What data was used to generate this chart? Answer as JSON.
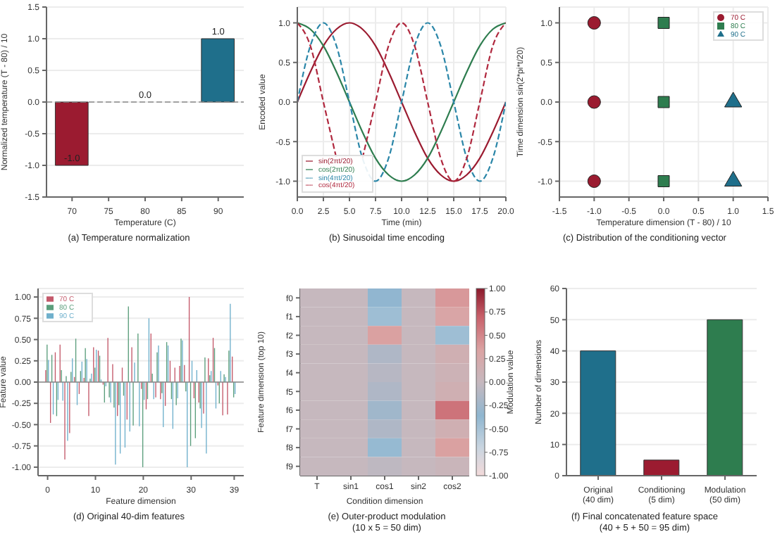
{
  "chart_data": [
    {
      "type": "bar",
      "title": "(a) Temperature normalization",
      "xlabel": "Temperature (C)",
      "ylabel": "Normalized temperature (T - 80) / 10",
      "x": [
        70,
        80,
        90
      ],
      "values": [
        -1,
        0,
        1
      ],
      "colors": [
        "#9b1b30",
        "#888888",
        "#1f6f8b"
      ],
      "value_labels": [
        "-1.0",
        "0.0",
        "1.0"
      ],
      "xlim": [
        66.5,
        93.5
      ],
      "xticks": [
        70,
        75,
        80,
        85,
        90
      ],
      "ylim": [
        -1.5,
        1.5
      ],
      "yticks": [
        -1.5,
        {
          "value": -1,
          "label": "-1.0"
        },
        -0.5,
        {
          "value": 0,
          "label": "0.0"
        },
        0.5,
        {
          "value": 1,
          "label": "1.0"
        },
        1.5
      ],
      "ref_lines": [
        {
          "axis": "y",
          "value": 0,
          "color": "#888888",
          "line_style": "dashed"
        }
      ],
      "grid": "y"
    },
    {
      "type": "line",
      "title": "(b) Sinusoidal time encoding",
      "xlabel": "Time (min)",
      "ylabel": "Encoded value",
      "x": [
        0,
        1.25,
        2.5,
        3.75,
        5,
        6.25,
        7.5,
        8.75,
        10,
        11.25,
        12.5,
        13.75,
        15,
        16.25,
        17.5,
        18.75,
        20
      ],
      "series": [
        {
          "name": "sin(2πt/20)",
          "color": "#9b1b30",
          "line_style": "solid",
          "values": [
            0,
            0.38,
            0.71,
            0.92,
            1,
            0.92,
            0.71,
            0.38,
            0,
            -0.38,
            -0.71,
            -0.92,
            -1,
            -0.92,
            -0.71,
            -0.38,
            0
          ]
        },
        {
          "name": "cos(2πt/20)",
          "color": "#2e7d4f",
          "line_style": "solid",
          "values": [
            1,
            0.92,
            0.71,
            0.38,
            0,
            -0.38,
            -0.71,
            -0.92,
            -1,
            -0.92,
            -0.71,
            -0.38,
            0,
            0.38,
            0.71,
            0.92,
            1
          ]
        },
        {
          "name": "sin(4πt/20)",
          "color": "#2a86a8",
          "line_style": "dashed",
          "values": [
            0,
            0.71,
            1,
            0.71,
            0,
            -0.71,
            -1,
            -0.71,
            0,
            0.71,
            1,
            0.71,
            0,
            -0.71,
            -1,
            -0.71,
            0
          ]
        },
        {
          "name": "cos(4πt/20)",
          "color": "#b0283e",
          "line_style": "dashed",
          "values": [
            1,
            0.71,
            0,
            -0.71,
            null,
            -0.71,
            0,
            0.71,
            1,
            0.71,
            0,
            -0.71,
            -1,
            -0.71,
            0,
            0.71,
            1
          ]
        }
      ],
      "xlim": [
        0,
        20
      ],
      "xticks": [
        {
          "value": 0,
          "label": "0.0"
        },
        2.5,
        {
          "value": 5,
          "label": "5.0"
        },
        7.5,
        {
          "value": 10,
          "label": "10.0"
        },
        12.5,
        {
          "value": 15,
          "label": "15.0"
        },
        17.5,
        {
          "value": 20,
          "label": "20.0"
        }
      ],
      "ylim": [
        -1.2,
        1.2
      ],
      "yticks": [
        {
          "value": -1,
          "label": "-1.0"
        },
        -0.5,
        {
          "value": 0,
          "label": "0.0"
        },
        0.5,
        {
          "value": 1,
          "label": "1.0"
        }
      ],
      "grid": true,
      "legend": "bottom left"
    },
    {
      "type": "scatter",
      "title": "(c) Distribution of the conditioning vector",
      "xlabel": "Temperature dimension (T - 80) / 10",
      "ylabel": "Time dimension sin(2*pi*t/20)",
      "series": [
        {
          "name": "70 C",
          "color": "#9b1b30",
          "marker": "circle",
          "x": [
            -1,
            -1,
            -1
          ],
          "values": [
            1,
            0,
            -1
          ]
        },
        {
          "name": "80 C",
          "color": "#2e7d4f",
          "marker": "square",
          "x": [
            0,
            0,
            0
          ],
          "values": [
            1,
            0,
            -1
          ]
        },
        {
          "name": "90 C",
          "color": "#1f6f8b",
          "marker": "triangle",
          "x": [
            1,
            1
          ],
          "values": [
            0,
            -1
          ]
        }
      ],
      "xlim": [
        -1.5,
        1.5
      ],
      "xticks": [
        -1.5,
        {
          "value": -1,
          "label": "-1.0"
        },
        -0.5,
        {
          "value": 0,
          "label": "0.0"
        },
        0.5,
        {
          "value": 1,
          "label": "1.0"
        },
        1.5
      ],
      "ylim": [
        -1.2,
        1.2
      ],
      "yticks": [
        {
          "value": -1,
          "label": "-1.0"
        },
        -0.5,
        {
          "value": 0,
          "label": "0.0"
        },
        0.5,
        {
          "value": 1,
          "label": "1.0"
        }
      ],
      "grid": true,
      "legend": "top right"
    },
    {
      "type": "bar",
      "title": "(d) Original 40-dim features",
      "xlabel": "Feature dimension",
      "ylabel": "Feature value",
      "x": [
        0,
        1,
        2,
        3,
        4,
        5,
        6,
        7,
        8,
        9,
        10,
        11,
        12,
        13,
        14,
        15,
        16,
        17,
        18,
        19,
        20,
        21,
        22,
        23,
        24,
        25,
        26,
        27,
        28,
        29,
        30,
        31,
        32,
        33,
        34,
        35,
        36,
        37,
        38,
        39
      ],
      "series": [
        {
          "name": "70 C",
          "color": "#c45a6b",
          "values": [
            0.14,
            -0.48,
            0.35,
            0.44,
            -0.91,
            -0.6,
            0.06,
            -0.14,
            0.05,
            -0.4,
            0.41,
            0.37,
            -0.03,
            0.52,
            0.21,
            -0.4,
            0.17,
            -0.44,
            0.41,
            null,
            -0.08,
            -0.32,
            0.57,
            -0.18,
            -0.2,
            -0.28,
            0.25,
            0.17,
            0.19,
            0.2,
            1.0,
            -0.19,
            -0.24,
            -0.37,
            0.28,
            0.52,
            -0.04,
            -0.39,
            -0.38,
            0.3
          ]
        },
        {
          "name": "80 C",
          "color": "#5b9e7c",
          "values": [
            0.44,
            0.32,
            -0.4,
            0.14,
            0.07,
            0.12,
            0.51,
            0.13,
            0.4,
            0.04,
            0.17,
            0.31,
            -0.24,
            -0.18,
            -0.3,
            -0.27,
            -0.16,
            0.89,
            -0.51,
            0.57,
            -1.0,
            -0.2,
            0.1,
            0.35,
            -0.13,
            0.47,
            -0.2,
            -0.27,
            0.51,
            -0.11,
            -0.75,
            -0.66,
            -0.31,
            0.29,
            0.08,
            0.4,
            -0.25,
            0.09,
            0.37,
            -0.18
          ]
        },
        {
          "name": "90 C",
          "color": "#6fb0cc",
          "values": [
            0.26,
            -0.38,
            -0.21,
            -0.22,
            -0.69,
            0.28,
            -0.27,
            0.24,
            0.27,
            0.1,
            0.38,
            0.03,
            -0.05,
            -0.24,
            -0.97,
            -0.84,
            -0.77,
            -0.58,
            0.23,
            -0.52,
            -0.21,
            0.75,
            -0.2,
            0.43,
            -0.53,
            0.43,
            -0.55,
            -0.19,
            0.49,
            -1.0,
            0.25,
            0.14,
            -0.54,
            -0.84,
            0.13,
            -0.31,
            0.13,
            0.06,
            0.92,
            -0.14
          ]
        }
      ],
      "xlim": [
        -2,
        41
      ],
      "xticks": [
        0,
        10,
        20,
        30,
        39
      ],
      "ylim": [
        -1.1,
        1.1
      ],
      "yticks": [
        {
          "value": -1,
          "label": "-1.00"
        },
        -0.75,
        {
          "value": -0.5,
          "label": "-0.50"
        },
        -0.25,
        {
          "value": 0,
          "label": "0.00"
        },
        0.25,
        {
          "value": 0.5,
          "label": "0.50"
        },
        0.75,
        {
          "value": 1,
          "label": "1.00"
        }
      ],
      "ref_lines": [
        {
          "axis": "y",
          "value": 0,
          "color": "#888888",
          "line_style": "solid"
        }
      ],
      "grid": "y",
      "legend": "top left"
    },
    {
      "type": "heatmap",
      "title": "(e) Outer-product modulation\n(10 x 5 = 50 dim)",
      "xlabel": "Condition dimension",
      "ylabel": "Feature dimension (top 10)",
      "clabel": "Modulation value",
      "categories": [
        "T",
        "sin1",
        "cos1",
        "sin2",
        "cos2"
      ],
      "y_categories": [
        "f0",
        "f1",
        "f2",
        "f3",
        "f4",
        "f5",
        "f6",
        "f7",
        "f8",
        "f9"
      ],
      "cells": [
        [
          0,
          0,
          -0.35,
          0,
          0.4
        ],
        [
          0,
          0,
          -0.45,
          0,
          0.3
        ],
        [
          0,
          0,
          0.35,
          0,
          -0.45
        ],
        [
          0,
          0,
          -0.15,
          0,
          0.15
        ],
        [
          0,
          0,
          -0.1,
          0,
          0.1
        ],
        [
          0,
          0,
          -0.15,
          0,
          0.15
        ],
        [
          0,
          0,
          -0.25,
          0,
          0.6
        ],
        [
          0,
          0,
          -0.15,
          0,
          0.15
        ],
        [
          0,
          0,
          -0.4,
          0,
          0.35
        ],
        [
          0,
          0,
          -0.05,
          0,
          0.05
        ]
      ],
      "clim": [
        -1,
        1
      ],
      "cticks": [
        {
          "value": -1,
          "label": "-1.00"
        },
        -0.75,
        {
          "value": -0.5,
          "label": "-0.50"
        },
        -0.25,
        {
          "value": 0,
          "label": "0.00"
        },
        0.25,
        {
          "value": 0.5,
          "label": "0.50"
        },
        0.75,
        {
          "value": 1,
          "label": "1.00"
        }
      ]
    },
    {
      "type": "bar",
      "title": "(f) Final concatenated feature space\n(40 + 5 + 50 = 95 dim)",
      "ylabel": "Number of dimensions",
      "categories": [
        "Original\n(40 dim)",
        "Conditioning\n(5 dim)",
        "Modulation\n(50 dim)"
      ],
      "values": [
        40,
        5,
        50
      ],
      "colors": [
        "#1f6f8b",
        "#9b1b30",
        "#2e7d4f"
      ],
      "ylim": [
        0,
        60
      ],
      "yticks": [
        0,
        10,
        20,
        30,
        40,
        50,
        60
      ],
      "grid": "y"
    }
  ]
}
